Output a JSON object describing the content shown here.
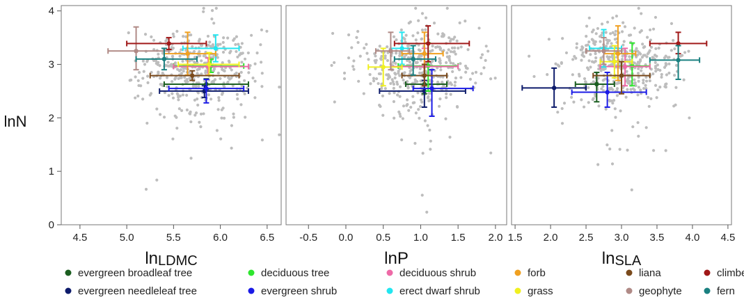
{
  "chart_data": {
    "type": "scatter",
    "shared_y": {
      "label": "lnN",
      "ylim": [
        0,
        4.1
      ],
      "ticks": [
        0,
        1,
        2,
        3,
        4
      ]
    },
    "panels": [
      {
        "xlabel_prefix": "ln",
        "xlabel_sub": "LDMC",
        "xlim": [
          4.3,
          6.65
        ],
        "ticks": [
          4.5,
          5.0,
          5.5,
          6.0,
          6.5
        ],
        "tick_labels": [
          "4.5",
          "5.0",
          "5.5",
          "6.0",
          "6.5"
        ],
        "cloud": {
          "cx": 5.75,
          "cy": 2.95,
          "sx": 0.32,
          "sy": 0.38,
          "n": 420,
          "seed": 11
        },
        "groups": [
          {
            "name": "evergreen broadleaf tree",
            "x": 5.85,
            "y": 2.63,
            "xerr": [
              5.4,
              6.3
            ],
            "yerr": [
              2.53,
              2.73
            ]
          },
          {
            "name": "evergreen needleleaf tree",
            "x": 5.83,
            "y": 2.5,
            "xerr": [
              5.35,
              6.3
            ],
            "yerr": [
              2.38,
              2.6
            ]
          },
          {
            "name": "deciduous tree",
            "x": 5.9,
            "y": 2.97,
            "xerr": [
              5.5,
              6.25
            ],
            "yerr": [
              2.85,
              3.1
            ]
          },
          {
            "name": "evergreen shrub",
            "x": 5.85,
            "y": 2.55,
            "xerr": [
              5.45,
              6.25
            ],
            "yerr": [
              2.28,
              2.72
            ]
          },
          {
            "name": "deciduous shrub",
            "x": 5.87,
            "y": 2.96,
            "xerr": [
              5.5,
              6.3
            ],
            "yerr": [
              2.8,
              3.12
            ]
          },
          {
            "name": "erect dwarf shrub",
            "x": 5.95,
            "y": 3.3,
            "xerr": [
              5.6,
              6.2
            ],
            "yerr": [
              3.05,
              3.55
            ]
          },
          {
            "name": "forb",
            "x": 5.65,
            "y": 3.2,
            "xerr": [
              5.4,
              5.95
            ],
            "yerr": [
              2.8,
              3.6
            ]
          },
          {
            "name": "grass",
            "x": 5.88,
            "y": 3.0,
            "xerr": [
              5.55,
              6.2
            ],
            "yerr": [
              2.8,
              3.22
            ]
          },
          {
            "name": "liana",
            "x": 5.7,
            "y": 2.79,
            "xerr": [
              5.25,
              6.2
            ],
            "yerr": [
              2.7,
              2.88
            ]
          },
          {
            "name": "geophyte",
            "x": 5.1,
            "y": 3.25,
            "xerr": [
              4.8,
              5.45
            ],
            "yerr": [
              2.9,
              3.7
            ]
          },
          {
            "name": "climber",
            "x": 5.45,
            "y": 3.39,
            "xerr": [
              5.0,
              5.85
            ],
            "yerr": [
              3.28,
              3.5
            ]
          },
          {
            "name": "fern",
            "x": 5.4,
            "y": 3.1,
            "xerr": [
              5.1,
              5.75
            ],
            "yerr": [
              2.9,
              3.3
            ]
          }
        ]
      },
      {
        "xlabel_prefix": "lnP",
        "xlabel_sub": "",
        "xlim": [
          -0.8,
          2.15
        ],
        "ticks": [
          -0.5,
          0.0,
          0.5,
          1.0,
          1.5,
          2.0
        ],
        "tick_labels": [
          "-0.5",
          "0.0",
          "0.5",
          "1.0",
          "1.5",
          "2.0"
        ],
        "cloud": {
          "cx": 0.95,
          "cy": 2.95,
          "sx": 0.38,
          "sy": 0.38,
          "n": 420,
          "seed": 23
        },
        "groups": [
          {
            "name": "evergreen broadleaf tree",
            "x": 1.05,
            "y": 2.63,
            "xerr": [
              0.8,
              1.35
            ],
            "yerr": [
              2.45,
              2.8
            ]
          },
          {
            "name": "evergreen needleleaf tree",
            "x": 1.05,
            "y": 2.5,
            "xerr": [
              0.45,
              1.6
            ],
            "yerr": [
              2.2,
              2.7
            ]
          },
          {
            "name": "deciduous tree",
            "x": 1.1,
            "y": 2.97,
            "xerr": [
              0.7,
              1.5
            ],
            "yerr": [
              2.5,
              3.4
            ]
          },
          {
            "name": "evergreen shrub",
            "x": 1.15,
            "y": 2.55,
            "xerr": [
              0.9,
              1.7
            ],
            "yerr": [
              2.03,
              2.9
            ]
          },
          {
            "name": "deciduous shrub",
            "x": 1.05,
            "y": 2.96,
            "xerr": [
              0.6,
              1.5
            ],
            "yerr": [
              2.6,
              3.3
            ]
          },
          {
            "name": "erect dwarf shrub",
            "x": 0.75,
            "y": 3.3,
            "xerr": [
              0.6,
              0.9
            ],
            "yerr": [
              3.0,
              3.6
            ]
          },
          {
            "name": "forb",
            "x": 1.05,
            "y": 3.2,
            "xerr": [
              0.75,
              1.3
            ],
            "yerr": [
              2.8,
              3.6
            ]
          },
          {
            "name": "grass",
            "x": 0.5,
            "y": 2.95,
            "xerr": [
              0.3,
              0.75
            ],
            "yerr": [
              2.6,
              3.3
            ]
          },
          {
            "name": "liana",
            "x": 1.05,
            "y": 2.79,
            "xerr": [
              0.75,
              1.35
            ],
            "yerr": [
              2.6,
              3.0
            ]
          },
          {
            "name": "geophyte",
            "x": 0.6,
            "y": 3.25,
            "xerr": [
              0.4,
              0.85
            ],
            "yerr": [
              2.9,
              3.6
            ]
          },
          {
            "name": "climber",
            "x": 1.1,
            "y": 3.39,
            "xerr": [
              0.65,
              1.65
            ],
            "yerr": [
              3.05,
              3.72
            ]
          },
          {
            "name": "fern",
            "x": 0.9,
            "y": 3.1,
            "xerr": [
              0.65,
              1.2
            ],
            "yerr": [
              2.8,
              3.35
            ]
          }
        ]
      },
      {
        "xlabel_prefix": "ln",
        "xlabel_sub": "SLA",
        "xlim": [
          1.45,
          4.55
        ],
        "ticks": [
          1.5,
          2.0,
          2.5,
          3.0,
          3.5,
          4.0,
          4.5
        ],
        "tick_labels": [
          "1.5",
          "2.0",
          "2.5",
          "3.0",
          "3.5",
          "4.0",
          "4.5"
        ],
        "cloud": {
          "cx": 3.0,
          "cy": 3.0,
          "sx": 0.42,
          "sy": 0.38,
          "n": 420,
          "seed": 37
        },
        "groups": [
          {
            "name": "evergreen broadleaf tree",
            "x": 2.65,
            "y": 2.63,
            "xerr": [
              2.35,
              2.9
            ],
            "yerr": [
              2.3,
              2.85
            ]
          },
          {
            "name": "evergreen needleleaf tree",
            "x": 2.05,
            "y": 2.56,
            "xerr": [
              1.6,
              2.5
            ],
            "yerr": [
              2.2,
              2.93
            ]
          },
          {
            "name": "deciduous tree",
            "x": 3.15,
            "y": 2.97,
            "xerr": [
              2.95,
              3.4
            ],
            "yerr": [
              2.6,
              3.4
            ]
          },
          {
            "name": "evergreen shrub",
            "x": 2.8,
            "y": 2.48,
            "xerr": [
              2.3,
              3.35
            ],
            "yerr": [
              2.2,
              2.85
            ]
          },
          {
            "name": "deciduous shrub",
            "x": 3.05,
            "y": 2.96,
            "xerr": [
              2.7,
              3.4
            ],
            "yerr": [
              2.6,
              3.3
            ]
          },
          {
            "name": "erect dwarf shrub",
            "x": 2.75,
            "y": 3.3,
            "xerr": [
              2.55,
              3.0
            ],
            "yerr": [
              2.95,
              3.65
            ]
          },
          {
            "name": "forb",
            "x": 2.95,
            "y": 3.2,
            "xerr": [
              2.75,
              3.2
            ],
            "yerr": [
              2.7,
              3.72
            ]
          },
          {
            "name": "grass",
            "x": 2.9,
            "y": 3.05,
            "xerr": [
              2.7,
              3.15
            ],
            "yerr": [
              2.75,
              3.35
            ]
          },
          {
            "name": "liana",
            "x": 3.0,
            "y": 2.79,
            "xerr": [
              2.6,
              3.4
            ],
            "yerr": [
              2.45,
              3.05
            ]
          },
          {
            "name": "geophyte",
            "x": 2.75,
            "y": 3.25,
            "xerr": [
              2.5,
              3.0
            ],
            "yerr": [
              3.0,
              3.5
            ]
          },
          {
            "name": "climber",
            "x": 3.8,
            "y": 3.39,
            "xerr": [
              3.4,
              4.2
            ],
            "yerr": [
              3.2,
              3.6
            ]
          },
          {
            "name": "fern",
            "x": 3.8,
            "y": 3.08,
            "xerr": [
              3.4,
              4.1
            ],
            "yerr": [
              2.72,
              3.35
            ]
          }
        ]
      }
    ],
    "legend": {
      "placement": "bottom",
      "entries": [
        {
          "name": "evergreen broadleaf tree",
          "color": "#1b5e20"
        },
        {
          "name": "deciduous tree",
          "color": "#2ee62e"
        },
        {
          "name": "deciduous shrub",
          "color": "#ee6aa7"
        },
        {
          "name": "forb",
          "color": "#f0a020"
        },
        {
          "name": "liana",
          "color": "#7a4a1c"
        },
        {
          "name": "climber",
          "color": "#a01818"
        },
        {
          "name": "evergreen needleleaf tree",
          "color": "#0d1b6b"
        },
        {
          "name": "evergreen shrub",
          "color": "#1a1ae6"
        },
        {
          "name": "erect dwarf shrub",
          "color": "#22e6f0"
        },
        {
          "name": "grass",
          "color": "#f0f020"
        },
        {
          "name": "geophyte",
          "color": "#b08a86"
        },
        {
          "name": "fern",
          "color": "#1a8080"
        }
      ]
    },
    "cloud_color": "#bdbdbd",
    "grid": false
  }
}
